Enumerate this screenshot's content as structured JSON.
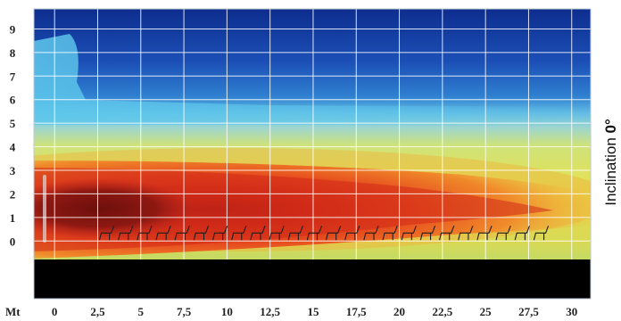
{
  "chart_data": {
    "type": "heatmap",
    "x_unit_label": "Mt",
    "x_ticks": [
      "0",
      "2,5",
      "5",
      "7,5",
      "10",
      "12,5",
      "15",
      "17,5",
      "20",
      "22,5",
      "25",
      "27,5",
      "30"
    ],
    "y_ticks": [
      "0",
      "1",
      "2",
      "3",
      "4",
      "5",
      "6",
      "7",
      "8",
      "9"
    ],
    "xlim": [
      -1.2,
      31.1
    ],
    "ylim": [
      -2.45,
      9.85
    ],
    "grid": true,
    "side_label_text": "Inclination ",
    "side_label_value": "0°",
    "color_scale": [
      "#0a2a8c",
      "#1c5fc4",
      "#4aa6de",
      "#8fd1d8",
      "#d6e46a",
      "#f0c22c",
      "#ee5d1e",
      "#d4261c",
      "#8a1612",
      "#000000"
    ]
  }
}
